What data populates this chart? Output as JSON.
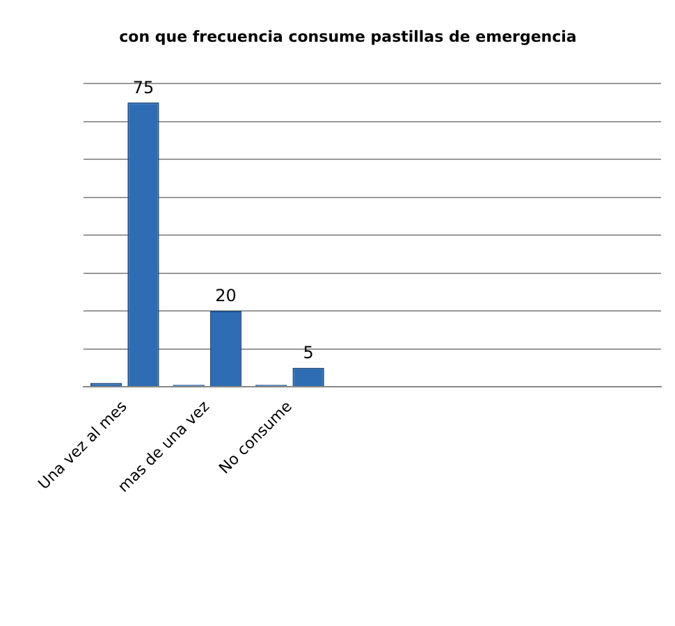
{
  "chart_data": {
    "type": "bar",
    "title": "con que frecuencia consume pastillas de emergencia",
    "categories": [
      "Una vez al mes",
      "mas de una vez",
      "No consume",
      null,
      null,
      null,
      null
    ],
    "series": [
      {
        "color": "#2e6db4",
        "values": [
          1,
          0.5,
          0.5,
          null,
          null,
          null,
          null
        ]
      },
      {
        "color": "#2e6db4",
        "values": [
          75,
          20,
          5,
          null,
          null,
          null,
          null
        ],
        "value_labels": [
          "75",
          "20",
          "5",
          null,
          null,
          null,
          null
        ]
      }
    ],
    "ylim": [
      0,
      80
    ],
    "yticks": [
      {
        "value": 0,
        "label": null
      },
      {
        "value": 10,
        "label": null
      },
      {
        "value": 20,
        "label": null
      },
      {
        "value": 30,
        "label": null
      },
      {
        "value": 40,
        "label": null
      },
      {
        "value": 50,
        "label": null
      },
      {
        "value": 60,
        "label": null
      },
      {
        "value": 70,
        "label": null
      },
      {
        "value": 80,
        "label": null
      }
    ],
    "grid": "y",
    "tick_labels": "x",
    "legend": false
  }
}
